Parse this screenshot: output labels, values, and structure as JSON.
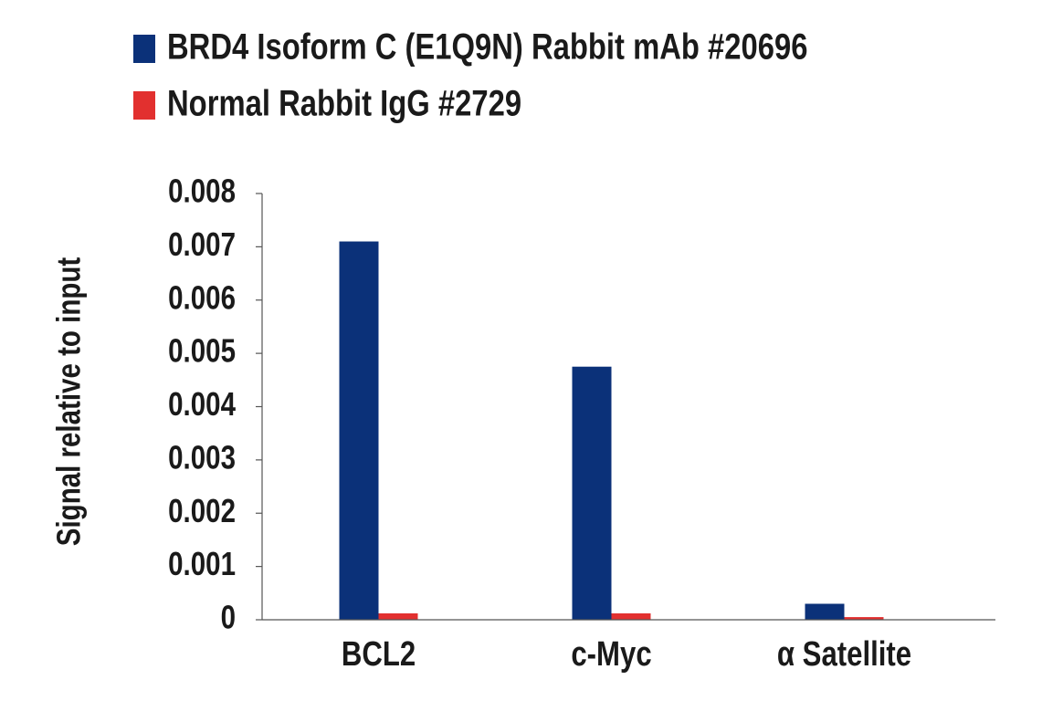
{
  "chart_data": {
    "type": "bar",
    "y_label": "Signal relative to input",
    "categories": [
      "BCL2",
      "c-Myc",
      "α Satellite"
    ],
    "series": [
      {
        "name": "BRD4 Isoform C (E1Q9N) Rabbit mAb #20696",
        "color": "#0b3179",
        "values": [
          0.0071,
          0.00475,
          0.0003
        ]
      },
      {
        "name": "Normal Rabbit IgG #2729",
        "color": "#e2302f",
        "values": [
          0.00012,
          0.00012,
          5e-05
        ]
      }
    ],
    "ylim": [
      0,
      0.008
    ],
    "yticks": [
      0,
      0.001,
      0.002,
      0.003,
      0.004,
      0.005,
      0.006,
      0.007,
      0.008
    ]
  }
}
